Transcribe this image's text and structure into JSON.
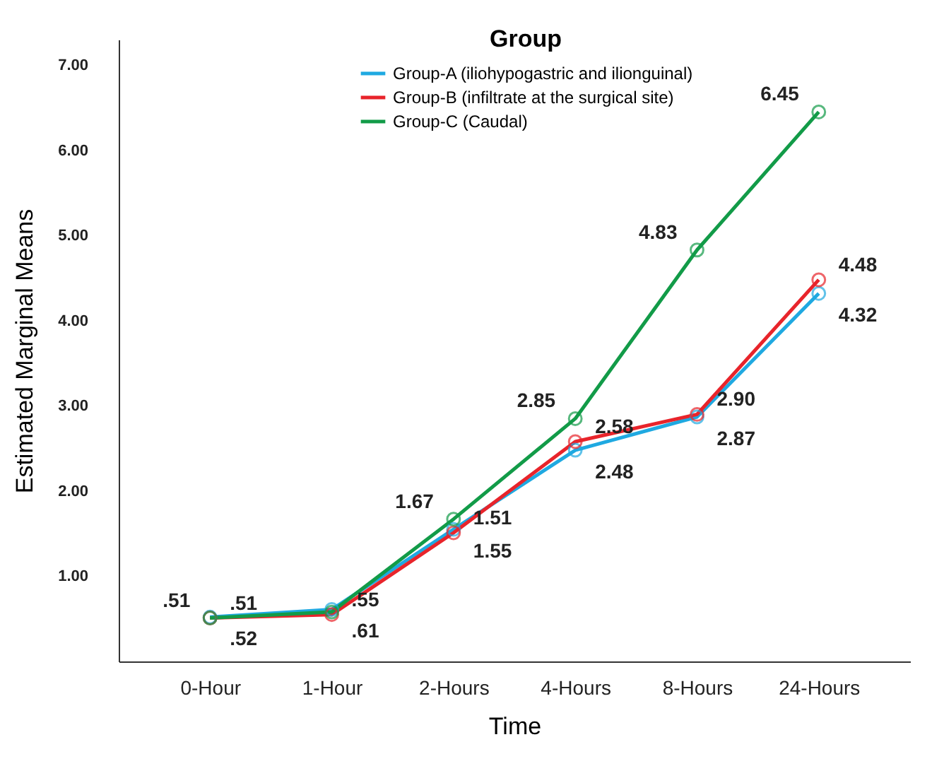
{
  "chart_data": {
    "type": "line",
    "xlabel": "Time",
    "ylabel": "Estimated Marginal Means",
    "legend_title": "Group",
    "categories": [
      "0-Hour",
      "1-Hour",
      "2-Hours",
      "4-Hours",
      "8-Hours",
      "24-Hours"
    ],
    "series": [
      {
        "name": "Group-A (iliohypogastric and ilionguinal)",
        "color": "#1fa9e1",
        "values": [
          0.52,
          0.61,
          1.55,
          2.48,
          2.87,
          4.32
        ],
        "value_labels": [
          ".52",
          ".61",
          "1.55",
          "2.48",
          "2.87",
          "4.32"
        ]
      },
      {
        "name": "Group-B (infiltrate at the surgical site)",
        "color": "#e8242b",
        "values": [
          0.51,
          0.55,
          1.51,
          2.58,
          2.9,
          4.48
        ],
        "value_labels": [
          ".51",
          ".55",
          "1.51",
          "2.58",
          "2.90",
          "4.48"
        ]
      },
      {
        "name": "Group-C (Caudal)",
        "color": "#129b48",
        "values": [
          0.51,
          0.58,
          1.67,
          2.85,
          4.83,
          6.45
        ],
        "value_labels": [
          ".51",
          null,
          "1.67",
          "2.85",
          "4.83",
          "6.45"
        ]
      }
    ],
    "ylim": [
      0,
      7.3
    ],
    "yticks": [
      {
        "value": 1,
        "label": "1.00"
      },
      {
        "value": 2,
        "label": "2.00"
      },
      {
        "value": 3,
        "label": "3.00"
      },
      {
        "value": 4,
        "label": "4.00"
      },
      {
        "value": 5,
        "label": "5.00"
      },
      {
        "value": 6,
        "label": "6.00"
      },
      {
        "value": 7,
        "label": "7.00"
      }
    ],
    "grid": false,
    "legend": "top right",
    "marker": "circle",
    "line_style": "solid"
  }
}
